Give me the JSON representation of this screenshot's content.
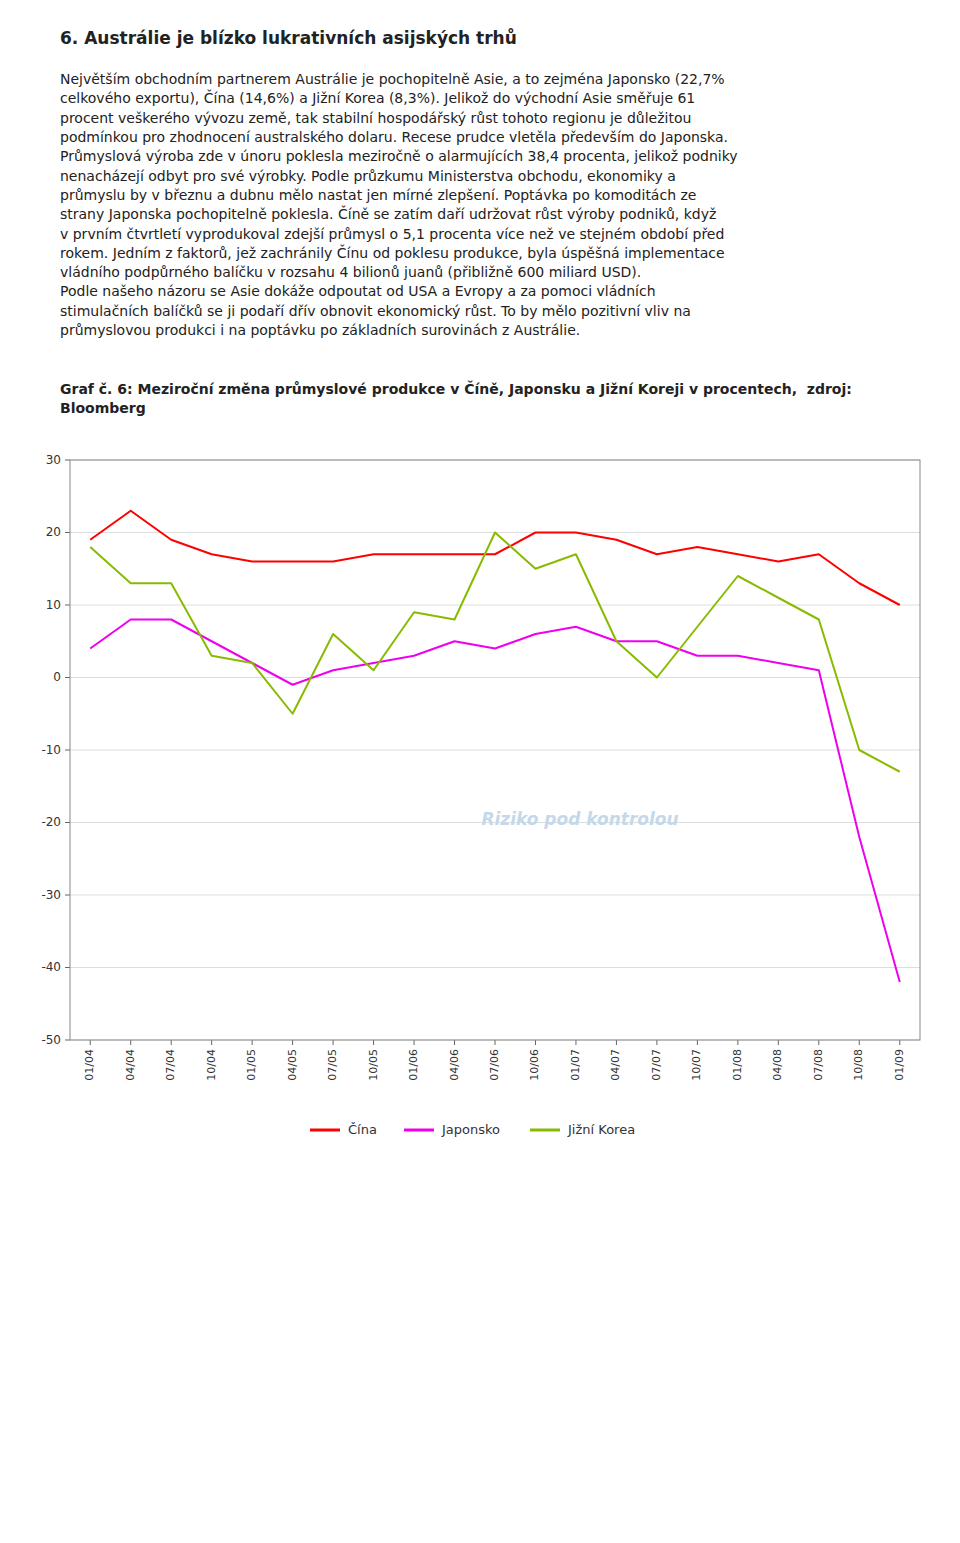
{
  "section_title": "6.  Austrálie je blízko lukrativních asijských trhů",
  "body_lines": [
    "Největším obchodním partnerem Austrálie je pochopitelně Asie, a to zejména Japonsko (22,7%",
    "celkového exportu), Čína (14,6%) a Jižní Korea (8,3%). Jelikož do východní Asie směřuje 61",
    "procent veškerého vývozu země, tak stabilní hospodářský růst tohoto regionu je důležitou",
    "podmínkou pro zhodnocení australského dolaru. Recese prudce vletěla především do Japonska.",
    "Průmyslová výroba zde v únoru poklesla meziročně o alarmujících 38,4 procenta, jelikož podniky",
    "nenacházejí odbyt pro své výrobky. Podle průzkumu Ministerstva obchodu, ekonomiky a",
    "průmyslu by v březnu a dubnu mělo nastat jen mírné zlepšení. Poptávka po komoditách ze",
    "strany Japonska pochopitelně poklesla. Číně se zatím daří udržovat růst výroby podniků, když",
    "v prvním čtvrtletí vyprodukoval zdejší průmysl o 5,1 procenta více než ve stejném období před",
    "rokem. Jedním z faktorů, jež zachránily Čínu od poklesu produkce, byla úspěšná implementace",
    "vládního podpůrného balíčku v rozsahu 4 bilionů juanů (přibližně 600 miliard USD).",
    "Podle našeho názoru se Asie dokáže odpoutat od USA a Evropy a za pomoci vládních",
    "stimulačních balíčků se ji podaří dřív obnovit ekonomický růst. To by mělo pozitivní vliv na",
    "průmyslovou produkci i na poptávku po základních surovinách z Austrálie."
  ],
  "chart_data": {
    "type": "line",
    "title": "Graf č. 6: Meziroční změna průmyslové produkce v Číně, Japonsku a Jižní Koreji v procentech,  zdroj: Bloomberg",
    "annotations": [
      "Riziko pod kontrolou"
    ],
    "categories": [
      "01/04",
      "04/04",
      "07/04",
      "10/04",
      "01/05",
      "04/05",
      "07/05",
      "10/05",
      "01/06",
      "04/06",
      "07/06",
      "10/06",
      "01/07",
      "04/07",
      "07/07",
      "10/07",
      "01/08",
      "04/08",
      "07/08",
      "10/08",
      "01/09"
    ],
    "series": [
      {
        "name": "Čína",
        "color": "#ff0000",
        "values": [
          19,
          23,
          19,
          17,
          16,
          16,
          16,
          17,
          17,
          17,
          17,
          20,
          20,
          19,
          17,
          18,
          17,
          16,
          17,
          13,
          10
        ]
      },
      {
        "name": "Japonsko",
        "color": "#ee00ee",
        "values": [
          4,
          8,
          8,
          5,
          2,
          -1,
          1,
          2,
          3,
          5,
          4,
          6,
          7,
          5,
          5,
          3,
          3,
          2,
          1,
          -22,
          -42
        ]
      },
      {
        "name": "Jižní Korea",
        "color": "#88bb00",
        "values": [
          18,
          13,
          13,
          3,
          2,
          -5,
          6,
          1,
          9,
          8,
          20,
          15,
          17,
          5,
          0,
          7,
          14,
          11,
          8,
          -10,
          -13
        ]
      }
    ],
    "ylim": [
      -50,
      30
    ],
    "yticks": [
      -50,
      -40,
      -30,
      -20,
      -10,
      0,
      10,
      20,
      30
    ],
    "grid": true,
    "legend": "bottom"
  }
}
